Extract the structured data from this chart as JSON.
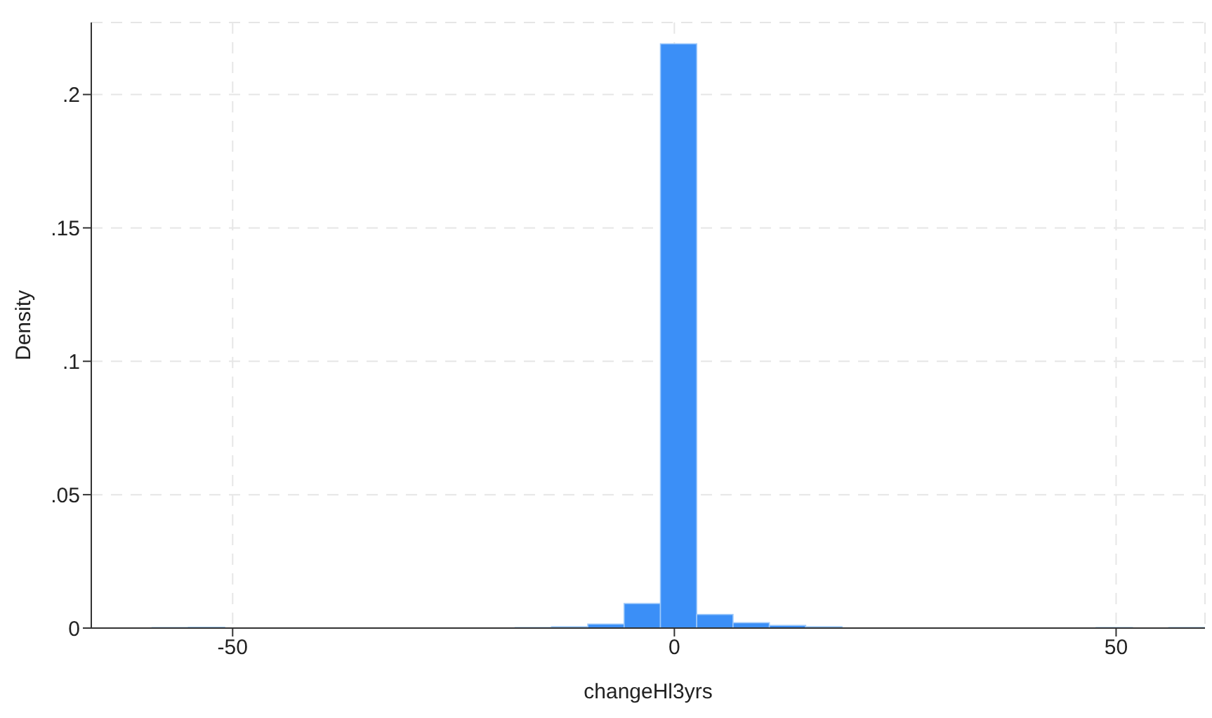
{
  "chart_data": {
    "type": "histogram",
    "xlabel": "changeHl3yrs",
    "ylabel": "Density",
    "color": "#3b8ff7",
    "bins": [
      -59.13,
      -55.02,
      -50.91,
      -46.8,
      -42.69,
      -38.58,
      -34.47,
      -30.36,
      -26.25,
      -22.14,
      -18.03,
      -13.92,
      -9.81,
      -5.7,
      -1.59,
      2.52,
      6.63,
      10.74,
      14.85,
      18.96,
      23.07,
      27.18,
      31.29,
      35.4,
      39.51,
      43.62,
      47.73,
      51.84,
      55.95,
      60.06
    ],
    "values": [
      0.0002,
      0.0003,
      0,
      0,
      0,
      0,
      0,
      0,
      0,
      0,
      0.0002,
      0.0005,
      0.0015,
      0.0092,
      0.219,
      0.0051,
      0.002,
      0.001,
      0.0005,
      0,
      0,
      0,
      0,
      0,
      0,
      0,
      0.0002,
      0,
      0.0002
    ],
    "xlim": [
      -66,
      60.06
    ],
    "xticks": [
      -50,
      0,
      50
    ],
    "ylim": [
      0,
      0.227
    ],
    "yticks": [
      0,
      {
        "value": 0.05,
        "label": ".05"
      },
      {
        "value": 0.1,
        "label": ".1"
      },
      {
        "value": 0.15,
        "label": ".15"
      },
      {
        "value": 0.2,
        "label": ".2"
      }
    ],
    "grid": true
  }
}
